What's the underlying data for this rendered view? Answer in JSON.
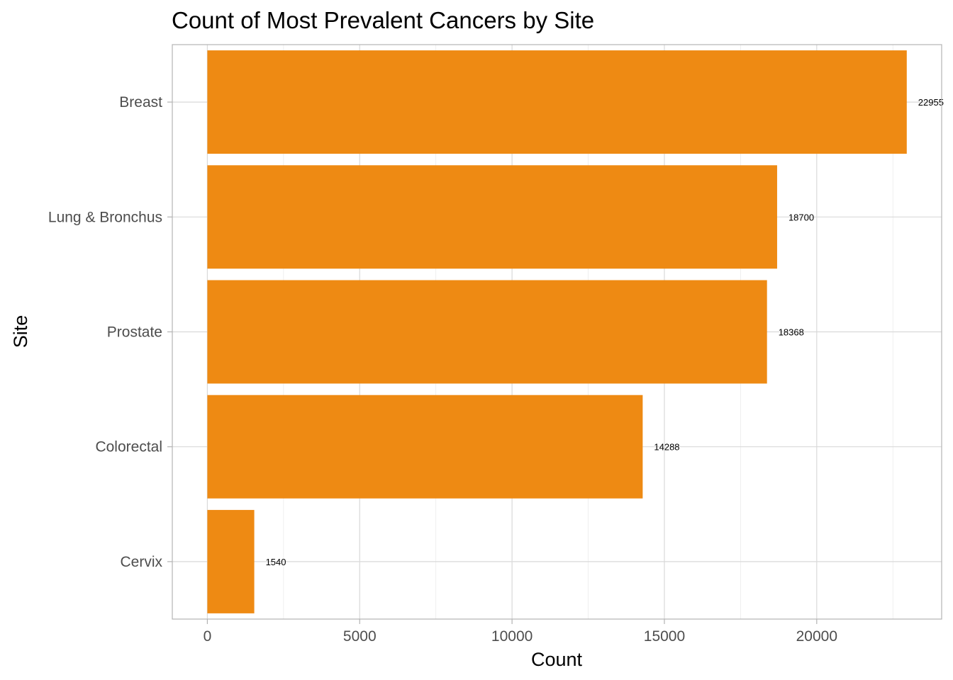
{
  "chart_data": {
    "type": "bar",
    "orientation": "horizontal",
    "title": "Count of Most Prevalent Cancers by Site",
    "xlabel": "Count",
    "ylabel": "Site",
    "categories": [
      "Breast",
      "Lung & Bronchus",
      "Prostate",
      "Colorectal",
      "Cervix"
    ],
    "values": [
      22955,
      18700,
      18368,
      14288,
      1540
    ],
    "data_labels": [
      "22955",
      "18700",
      "18368",
      "14288",
      "1540"
    ],
    "xlim": [
      -1150,
      24100
    ],
    "x_ticks": [
      0,
      5000,
      10000,
      15000,
      20000
    ],
    "x_tick_labels": [
      "0",
      "5000",
      "10000",
      "15000",
      "20000"
    ],
    "bar_color": "#EE8A13",
    "grid": true,
    "legend": "none"
  }
}
